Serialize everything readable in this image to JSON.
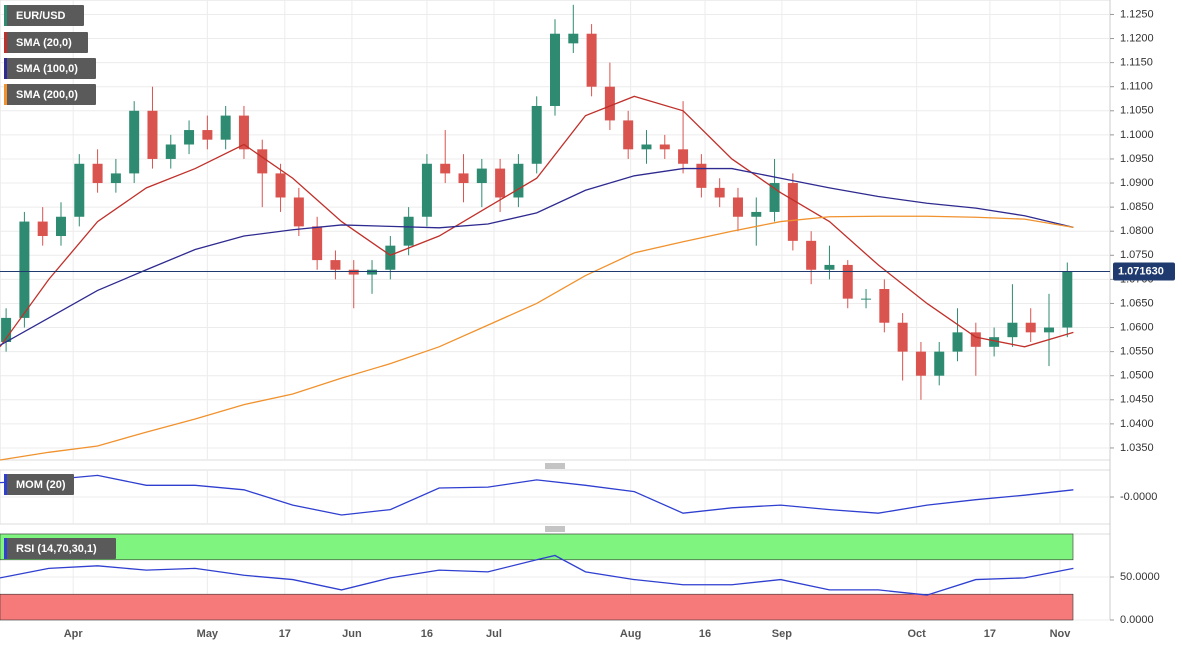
{
  "chart_data": [
    {
      "type": "candlestick",
      "name": "EUR/USD",
      "up_color": "#2e8b72",
      "down_color": "#d9534f",
      "x": [
        1,
        4,
        7,
        10,
        13,
        16,
        19,
        22,
        25,
        28,
        31,
        34,
        37,
        40,
        43,
        46,
        49,
        52,
        55,
        58,
        61,
        64,
        67,
        70,
        73,
        76,
        79,
        82,
        85,
        88,
        91,
        94,
        97,
        100,
        103,
        106,
        109,
        112,
        115,
        118,
        121,
        124,
        127,
        130,
        133,
        136,
        139,
        142,
        145,
        148,
        151,
        154,
        157,
        160,
        163,
        166,
        169,
        172,
        175
      ],
      "open": [
        1.057,
        1.062,
        1.082,
        1.079,
        1.083,
        1.094,
        1.09,
        1.092,
        1.105,
        1.095,
        1.098,
        1.101,
        1.099,
        1.104,
        1.097,
        1.092,
        1.087,
        1.081,
        1.074,
        1.072,
        1.071,
        1.072,
        1.077,
        1.083,
        1.094,
        1.092,
        1.09,
        1.093,
        1.087,
        1.094,
        1.106,
        1.119,
        1.121,
        1.11,
        1.103,
        1.097,
        1.098,
        1.097,
        1.094,
        1.089,
        1.087,
        1.083,
        1.084,
        1.09,
        1.078,
        1.072,
        1.073,
        1.066,
        1.068,
        1.061,
        1.055,
        1.05,
        1.055,
        1.059,
        1.056,
        1.058,
        1.061,
        1.059,
        1.06
      ],
      "high": [
        1.064,
        1.084,
        1.085,
        1.086,
        1.096,
        1.097,
        1.095,
        1.107,
        1.11,
        1.1,
        1.103,
        1.104,
        1.106,
        1.106,
        1.099,
        1.094,
        1.089,
        1.083,
        1.076,
        1.074,
        1.074,
        1.079,
        1.085,
        1.096,
        1.101,
        1.096,
        1.095,
        1.095,
        1.096,
        1.108,
        1.124,
        1.127,
        1.123,
        1.115,
        1.105,
        1.101,
        1.1,
        1.107,
        1.096,
        1.091,
        1.089,
        1.087,
        1.095,
        1.092,
        1.08,
        1.077,
        1.074,
        1.068,
        1.07,
        1.063,
        1.057,
        1.057,
        1.064,
        1.061,
        1.06,
        1.069,
        1.064,
        1.067,
        1.0735
      ],
      "low": [
        1.055,
        1.06,
        1.077,
        1.077,
        1.081,
        1.088,
        1.088,
        1.09,
        1.093,
        1.093,
        1.096,
        1.097,
        1.097,
        1.095,
        1.085,
        1.084,
        1.079,
        1.072,
        1.07,
        1.064,
        1.067,
        1.07,
        1.075,
        1.081,
        1.09,
        1.086,
        1.085,
        1.084,
        1.085,
        1.092,
        1.104,
        1.117,
        1.108,
        1.101,
        1.095,
        1.094,
        1.095,
        1.092,
        1.087,
        1.085,
        1.08,
        1.077,
        1.082,
        1.076,
        1.069,
        1.07,
        1.064,
        1.064,
        1.059,
        1.049,
        1.045,
        1.048,
        1.053,
        1.05,
        1.054,
        1.056,
        1.057,
        1.052,
        1.058
      ],
      "close": [
        1.062,
        1.082,
        1.079,
        1.083,
        1.094,
        1.09,
        1.092,
        1.105,
        1.095,
        1.098,
        1.101,
        1.099,
        1.104,
        1.097,
        1.092,
        1.087,
        1.081,
        1.074,
        1.072,
        1.071,
        1.072,
        1.077,
        1.083,
        1.094,
        1.092,
        1.09,
        1.093,
        1.087,
        1.094,
        1.106,
        1.121,
        1.121,
        1.11,
        1.103,
        1.097,
        1.098,
        1.097,
        1.094,
        1.089,
        1.087,
        1.083,
        1.084,
        1.09,
        1.078,
        1.072,
        1.073,
        1.066,
        1.066,
        1.061,
        1.055,
        1.05,
        1.055,
        1.059,
        1.056,
        1.058,
        1.061,
        1.059,
        1.06,
        1.0716
      ],
      "overlays": [
        {
          "name": "SMA (20,0)",
          "color": "#c0302a",
          "x": [
            0,
            8,
            16,
            24,
            32,
            40,
            48,
            56,
            64,
            72,
            80,
            88,
            96,
            104,
            112,
            120,
            128,
            136,
            144,
            152,
            160,
            168,
            176
          ],
          "values": [
            1.056,
            1.07,
            1.082,
            1.089,
            1.093,
            1.098,
            1.091,
            1.082,
            1.075,
            1.079,
            1.085,
            1.091,
            1.104,
            1.108,
            1.105,
            1.095,
            1.088,
            1.082,
            1.073,
            1.065,
            1.058,
            1.056,
            1.059
          ]
        },
        {
          "name": "SMA (100,0)",
          "color": "#2e2a8f",
          "x": [
            0,
            8,
            16,
            24,
            32,
            40,
            48,
            56,
            64,
            72,
            80,
            88,
            96,
            104,
            112,
            120,
            128,
            136,
            144,
            152,
            160,
            168,
            176
          ],
          "values": [
            1.0563,
            1.062,
            1.0677,
            1.072,
            1.0762,
            1.079,
            1.0803,
            1.0813,
            1.081,
            1.0807,
            1.0815,
            1.0838,
            1.0885,
            1.0915,
            1.093,
            1.093,
            1.091,
            1.089,
            1.0872,
            1.0858,
            1.0848,
            1.0832,
            1.0808
          ]
        },
        {
          "name": "SMA (200,0)",
          "color": "#f0922e",
          "x": [
            0,
            8,
            16,
            24,
            32,
            40,
            48,
            56,
            64,
            72,
            80,
            88,
            96,
            104,
            112,
            120,
            128,
            136,
            144,
            152,
            160,
            168,
            176
          ],
          "values": [
            1.0325,
            1.0341,
            1.0354,
            1.0383,
            1.041,
            1.044,
            1.0462,
            1.0495,
            1.0525,
            1.056,
            1.0605,
            1.065,
            1.0708,
            1.0755,
            1.0778,
            1.08,
            1.082,
            1.083,
            1.0831,
            1.0831,
            1.0829,
            1.0825,
            1.0808
          ]
        }
      ],
      "last_price": {
        "value": 1.07163,
        "label": "1.071630"
      },
      "xlim": [
        0,
        182
      ],
      "xticks": [
        {
          "value": 12,
          "label": "Apr"
        },
        {
          "value": 34,
          "label": "May"
        },
        {
          "value": 46.7,
          "label": "17"
        },
        {
          "value": 57.7,
          "label": "Jun"
        },
        {
          "value": 70,
          "label": "16"
        },
        {
          "value": 81,
          "label": "Jul"
        },
        {
          "value": 103.4,
          "label": "Aug"
        },
        {
          "value": 115.6,
          "label": "16"
        },
        {
          "value": 128.2,
          "label": "Sep"
        },
        {
          "value": 150.3,
          "label": "Oct"
        },
        {
          "value": 162.3,
          "label": "17"
        },
        {
          "value": 173.8,
          "label": "Nov"
        }
      ],
      "ylim": [
        1.0325,
        1.128
      ],
      "yticks": [
        {
          "value": 1.035,
          "label": "1.0350"
        },
        {
          "value": 1.04,
          "label": "1.0400"
        },
        {
          "value": 1.045,
          "label": "1.0450"
        },
        {
          "value": 1.05,
          "label": "1.0500"
        },
        {
          "value": 1.055,
          "label": "1.0550"
        },
        {
          "value": 1.06,
          "label": "1.0600"
        },
        {
          "value": 1.065,
          "label": "1.0650"
        },
        {
          "value": 1.07,
          "label": "1.0700"
        },
        {
          "value": 1.075,
          "label": "1.0750"
        },
        {
          "value": 1.08,
          "label": "1.0800"
        },
        {
          "value": 1.085,
          "label": "1.0850"
        },
        {
          "value": 1.09,
          "label": "1.0900"
        },
        {
          "value": 1.095,
          "label": "1.0950"
        },
        {
          "value": 1.1,
          "label": "1.1000"
        },
        {
          "value": 1.105,
          "label": "1.1050"
        },
        {
          "value": 1.11,
          "label": "1.1100"
        },
        {
          "value": 1.115,
          "label": "1.1150"
        },
        {
          "value": 1.12,
          "label": "1.1200"
        },
        {
          "value": 1.125,
          "label": "1.1250"
        }
      ]
    },
    {
      "type": "line",
      "name": "MOM (20)",
      "color": "#2f3fd0",
      "x": [
        0,
        8,
        16,
        24,
        32,
        40,
        48,
        56,
        64,
        72,
        80,
        88,
        96,
        104,
        112,
        120,
        128,
        136,
        144,
        152,
        160,
        168,
        176
      ],
      "values": [
        0.016,
        0.019,
        0.024,
        0.013,
        0.013,
        0.008,
        -0.009,
        -0.02,
        -0.014,
        0.01,
        0.011,
        0.019,
        0.013,
        0.006,
        -0.018,
        -0.012,
        -0.009,
        -0.014,
        -0.018,
        -0.009,
        -0.003,
        0.002,
        0.008
      ],
      "ylim": [
        -0.03,
        0.03
      ],
      "yticks": [
        {
          "value": 0,
          "label": "-0.0000"
        }
      ]
    },
    {
      "type": "line",
      "name": "RSI (14,70,30,1)",
      "color": "#2f3fd0",
      "x": [
        0,
        8,
        16,
        24,
        32,
        40,
        48,
        56,
        64,
        72,
        80,
        88,
        91,
        96,
        104,
        112,
        120,
        128,
        136,
        144,
        152,
        160,
        168,
        176
      ],
      "values": [
        49,
        60,
        63,
        58,
        60,
        52,
        47,
        35,
        49,
        58,
        56,
        70,
        75,
        56,
        47,
        41,
        41,
        47,
        35,
        35,
        29,
        47,
        49,
        60
      ],
      "bands": [
        {
          "from": 70,
          "to": 100,
          "color": "#7ff57f"
        },
        {
          "from": 0,
          "to": 30,
          "color": "#f67a7a"
        }
      ],
      "ylim": [
        0,
        100
      ],
      "yticks": [
        {
          "value": 50,
          "label": "50.0000"
        },
        {
          "value": 0,
          "label": "0.0000"
        }
      ]
    }
  ]
}
